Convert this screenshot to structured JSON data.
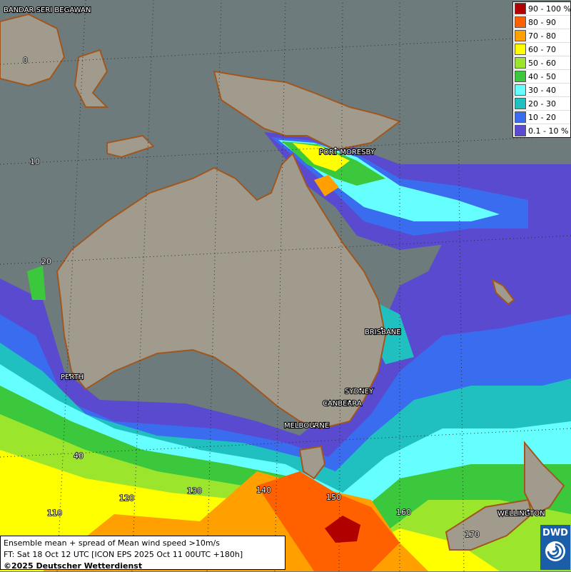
{
  "legend": {
    "items": [
      {
        "label": "90 - 100 %",
        "color": "#b00000"
      },
      {
        "label": "80 - 90",
        "color": "#ff6000"
      },
      {
        "label": "70 - 80",
        "color": "#ffa000"
      },
      {
        "label": "60 - 70",
        "color": "#ffff00"
      },
      {
        "label": "50 - 60",
        "color": "#9be62d"
      },
      {
        "label": "40 - 50",
        "color": "#3cc83c"
      },
      {
        "label": "30 - 40",
        "color": "#66ffff"
      },
      {
        "label": "20 - 30",
        "color": "#20c0c0"
      },
      {
        "label": "10 - 20",
        "color": "#3a6cf0"
      },
      {
        "label": "0.1 - 10 %",
        "color": "#5a4ad0"
      }
    ]
  },
  "cities": [
    {
      "name": "BANDAR SERI BEGAWAN"
    },
    {
      "name": "PORT MORESBY"
    },
    {
      "name": "BRISBANE"
    },
    {
      "name": "PERTH"
    },
    {
      "name": "SYDNEY"
    },
    {
      "name": "CANBERRA"
    },
    {
      "name": "MELBOURNE"
    },
    {
      "name": "WELLINGTON"
    }
  ],
  "grid_labels": [
    "0",
    "10",
    "20",
    "40",
    "110",
    "120",
    "130",
    "140",
    "150",
    "160",
    "170"
  ],
  "info": {
    "line1": "Ensemble mean + spread of Mean wind speed >10m/s",
    "line2": "FT: Sat 18 Oct 12 UTC [ICON EPS 2025 Oct 11 00UTC +180h]",
    "line3": "©2025 Deutscher Wetterdienst"
  },
  "logo": {
    "text": "DWD"
  }
}
